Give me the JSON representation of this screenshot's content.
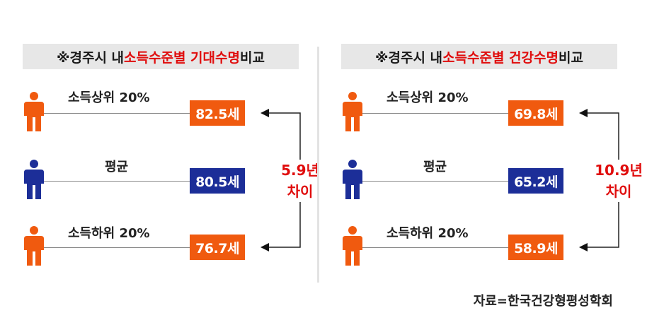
{
  "colors": {
    "high": "#f05a0f",
    "avg": "#1c2e98",
    "low": "#f05a0f",
    "accent": "#e00d0d"
  },
  "chart_data": [
    {
      "type": "table",
      "title_prefix": "※경주시 내 ",
      "title_highlight": "소득수준별 기대수명",
      "title_suffix": " 비교",
      "rows": [
        {
          "label": "소득상위 20%",
          "value": 82.5,
          "value_label": "82.5세",
          "color_key": "high"
        },
        {
          "label": "평균",
          "value": 80.5,
          "value_label": "80.5세",
          "color_key": "avg"
        },
        {
          "label": "소득하위 20%",
          "value": 76.7,
          "value_label": "76.7세",
          "color_key": "low"
        }
      ],
      "difference": {
        "value": 5.9,
        "line1": "5.9년",
        "line2": "차이"
      }
    },
    {
      "type": "table",
      "title_prefix": "※경주시 내 ",
      "title_highlight": "소득수준별 건강수명",
      "title_suffix": " 비교",
      "rows": [
        {
          "label": "소득상위 20%",
          "value": 69.8,
          "value_label": "69.8세",
          "color_key": "high"
        },
        {
          "label": "평균",
          "value": 65.2,
          "value_label": "65.2세",
          "color_key": "avg"
        },
        {
          "label": "소득하위 20%",
          "value": 58.9,
          "value_label": "58.9세",
          "color_key": "low"
        }
      ],
      "difference": {
        "value": 10.9,
        "line1": "10.9년",
        "line2": "차이"
      }
    }
  ],
  "source": "자료=한국건강형평성학회"
}
